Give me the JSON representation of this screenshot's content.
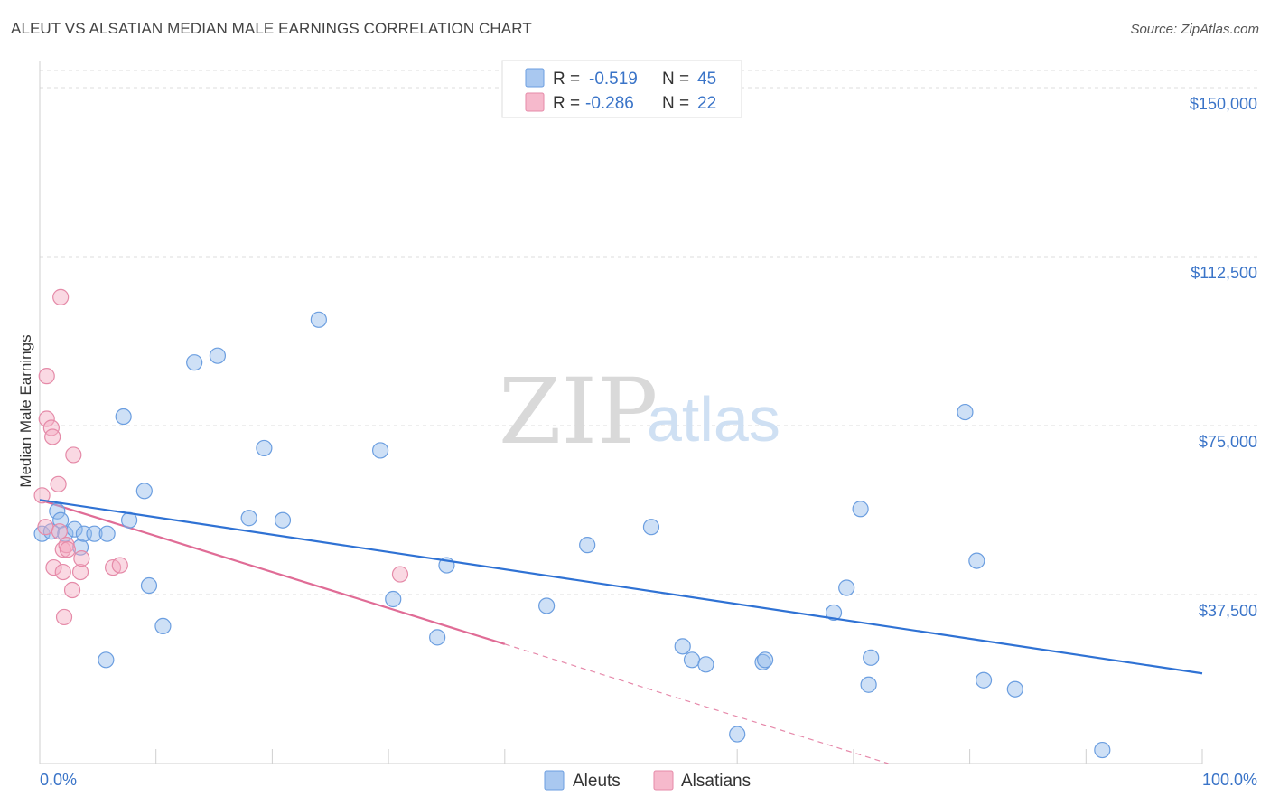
{
  "title": "ALEUT VS ALSATIAN MEDIAN MALE EARNINGS CORRELATION CHART",
  "source": "Source: ZipAtlas.com",
  "watermark": {
    "zip": "ZIP",
    "atlas": "atlas"
  },
  "legend_top": [
    {
      "swatch": "#a9c8f0",
      "r_label": "R =",
      "r_value": "-0.519",
      "n_label": "N =",
      "n_value": "45"
    },
    {
      "swatch": "#f6b9cc",
      "r_label": "R =",
      "r_value": "-0.286",
      "n_label": "N =",
      "n_value": "22"
    }
  ],
  "legend_bottom": [
    {
      "label": "Aleuts",
      "color": "#a9c8f0"
    },
    {
      "label": "Alsatians",
      "color": "#f6b9cc"
    }
  ],
  "colors": {
    "aleut_fill": "rgba(147,187,236,0.45)",
    "aleut_stroke": "#6b9ee0",
    "aleut_line": "#2f72d4",
    "alsatian_fill": "rgba(244,170,193,0.45)",
    "alsatian_stroke": "#e58aa8",
    "alsatian_line": "#e06c96"
  },
  "chart_data": {
    "type": "scatter",
    "title": "ALEUT VS ALSATIAN MEDIAN MALE EARNINGS CORRELATION CHART",
    "xlabel": "",
    "ylabel": "Median Male Earnings",
    "xlim": [
      0,
      100
    ],
    "ylim": [
      0,
      155000
    ],
    "x_tick_labels": [
      "0.0%",
      "100.0%"
    ],
    "y_ticks": [
      37500,
      75000,
      112500,
      150000
    ],
    "y_tick_labels": [
      "$37,500",
      "$75,000",
      "$112,500",
      "$150,000"
    ],
    "grid": true,
    "series": [
      {
        "name": "Aleuts",
        "r": -0.519,
        "n": 45,
        "points": [
          [
            0.2,
            51000
          ],
          [
            1.0,
            51500
          ],
          [
            1.5,
            56000
          ],
          [
            1.8,
            54000
          ],
          [
            2.2,
            51000
          ],
          [
            3.0,
            52000
          ],
          [
            3.5,
            48000
          ],
          [
            3.8,
            51000
          ],
          [
            4.7,
            51000
          ],
          [
            5.8,
            51000
          ],
          [
            5.7,
            23000
          ],
          [
            7.2,
            77000
          ],
          [
            7.7,
            54000
          ],
          [
            9.0,
            60500
          ],
          [
            9.4,
            39500
          ],
          [
            10.6,
            30500
          ],
          [
            13.3,
            89000
          ],
          [
            15.3,
            90500
          ],
          [
            18.0,
            54500
          ],
          [
            19.3,
            70000
          ],
          [
            20.9,
            54000
          ],
          [
            24.0,
            98500
          ],
          [
            29.3,
            69500
          ],
          [
            30.4,
            36500
          ],
          [
            34.2,
            28000
          ],
          [
            35.0,
            44000
          ],
          [
            43.6,
            35000
          ],
          [
            47.1,
            48500
          ],
          [
            52.6,
            52500
          ],
          [
            55.3,
            26000
          ],
          [
            56.1,
            23000
          ],
          [
            57.3,
            22000
          ],
          [
            60.0,
            6500
          ],
          [
            62.2,
            22500
          ],
          [
            62.4,
            23000
          ],
          [
            68.3,
            33500
          ],
          [
            69.4,
            39000
          ],
          [
            70.6,
            56500
          ],
          [
            71.3,
            17500
          ],
          [
            71.5,
            23500
          ],
          [
            79.6,
            78000
          ],
          [
            80.6,
            45000
          ],
          [
            81.2,
            18500
          ],
          [
            83.9,
            16500
          ],
          [
            91.4,
            3000
          ]
        ],
        "trend": {
          "x": [
            0,
            100
          ],
          "y": [
            58500,
            20000
          ]
        }
      },
      {
        "name": "Alsatians",
        "r": -0.286,
        "n": 22,
        "points": [
          [
            0.2,
            59500
          ],
          [
            0.5,
            52500
          ],
          [
            0.6,
            76500
          ],
          [
            0.6,
            86000
          ],
          [
            1.0,
            74500
          ],
          [
            1.1,
            72500
          ],
          [
            1.2,
            43500
          ],
          [
            1.6,
            62000
          ],
          [
            1.7,
            51500
          ],
          [
            1.8,
            103500
          ],
          [
            2.0,
            47500
          ],
          [
            2.0,
            42500
          ],
          [
            2.1,
            32500
          ],
          [
            2.3,
            48500
          ],
          [
            2.4,
            47500
          ],
          [
            2.8,
            38500
          ],
          [
            2.9,
            68500
          ],
          [
            3.5,
            42500
          ],
          [
            3.6,
            45500
          ],
          [
            6.3,
            43500
          ],
          [
            6.9,
            44000
          ],
          [
            31.0,
            42000
          ]
        ],
        "trend": {
          "x": [
            0,
            40
          ],
          "y": [
            58500,
            26500
          ]
        },
        "trend_extension": {
          "x": [
            40,
            73
          ],
          "y": [
            26500,
            0
          ]
        }
      }
    ]
  }
}
